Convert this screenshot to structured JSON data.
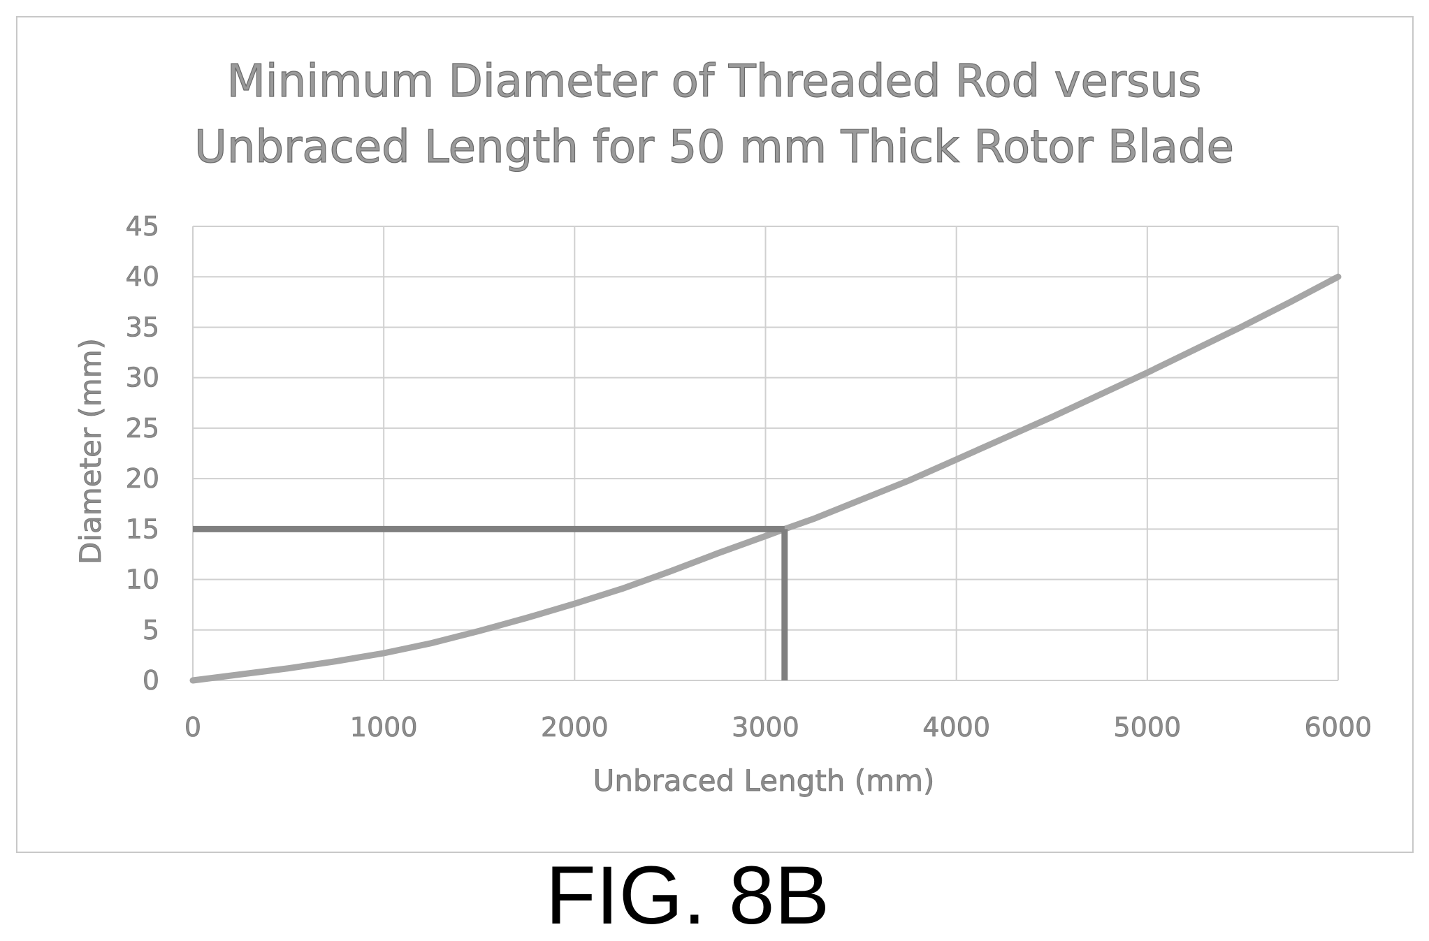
{
  "figure_label": "FIG. 8B",
  "chart_data": {
    "type": "line",
    "title_lines": [
      "Minimum Diameter of Threaded Rod versus",
      "Unbraced Length for 50 mm Thick Rotor Blade"
    ],
    "xlabel": "Unbraced Length (mm)",
    "ylabel": "Diameter (mm)",
    "xlim": [
      0,
      6000
    ],
    "ylim": [
      0,
      45
    ],
    "x_ticks": [
      0,
      1000,
      2000,
      3000,
      4000,
      5000,
      6000
    ],
    "y_ticks": [
      0,
      5,
      10,
      15,
      20,
      25,
      30,
      35,
      40,
      45
    ],
    "grid": true,
    "series": [
      {
        "color": "#a6a6a6",
        "x": [
          0,
          250,
          500,
          750,
          1000,
          1250,
          1500,
          1750,
          2000,
          2250,
          2500,
          2750,
          3000,
          3100,
          3250,
          3500,
          3750,
          4000,
          4250,
          4500,
          4750,
          5000,
          5250,
          5500,
          5750,
          6000
        ],
        "y": [
          0,
          0.6,
          1.2,
          1.9,
          2.7,
          3.7,
          4.9,
          6.2,
          7.6,
          9.1,
          10.8,
          12.6,
          14.3,
          15.0,
          16.0,
          17.9,
          19.8,
          21.9,
          24.0,
          26.1,
          28.3,
          30.5,
          32.8,
          35.1,
          37.5,
          40.0
        ]
      }
    ],
    "annotation": {
      "x": 3100,
      "y": 15,
      "color": "#7f7f7f"
    }
  }
}
